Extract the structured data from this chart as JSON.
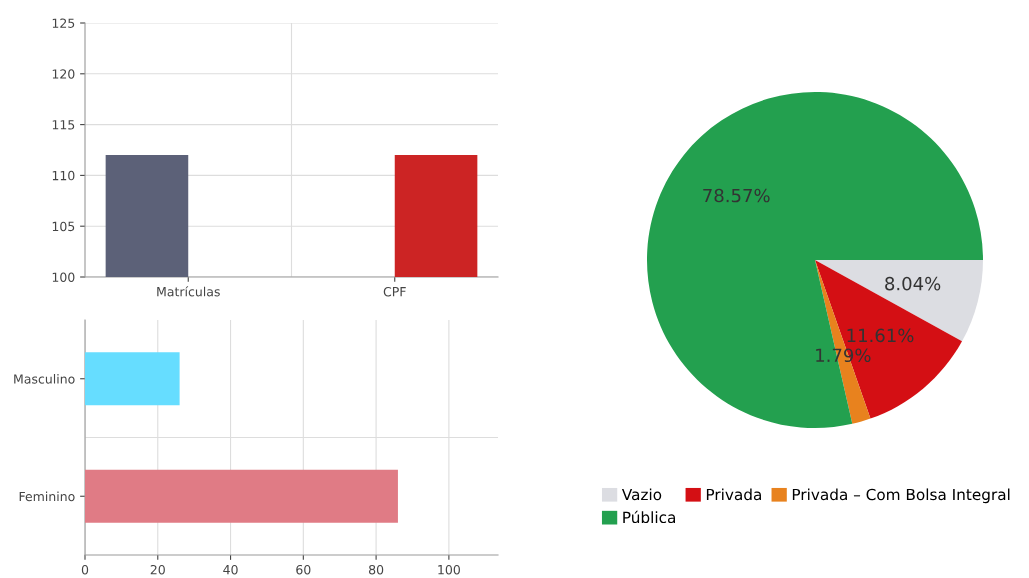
{
  "chart_data": [
    {
      "type": "bar",
      "categories": [
        "Matrículas",
        "CPF"
      ],
      "series": [
        {
          "color": "#5c6178",
          "values": [
            112,
            null
          ]
        },
        {
          "color": "#cc2424",
          "values": [
            null,
            112
          ]
        }
      ],
      "ylim": [
        100,
        125
      ],
      "yticks": [
        100,
        105,
        110,
        115,
        120,
        125
      ],
      "grid": true
    },
    {
      "type": "bar",
      "orientation": "horizontal",
      "categories": [
        "Masculino",
        "Feminino"
      ],
      "values": [
        26,
        86
      ],
      "colors": [
        "#66ddff",
        "#e07b85"
      ],
      "xlim": [
        0,
        113.5
      ],
      "xticks": [
        0,
        20,
        40,
        60,
        80,
        100
      ],
      "grid": true
    },
    {
      "type": "pie",
      "categories": [
        "Vazio",
        "Privada",
        "Privada – Com Bolsa Integral",
        "Pública"
      ],
      "values": [
        8.04,
        11.61,
        1.79,
        78.57
      ],
      "colors": [
        "#dcdde2",
        "#d40f14",
        "#e8821e",
        "#23a04f"
      ],
      "value_labels": [
        "8.04%",
        "11.61%",
        "1.79%",
        "78.57%"
      ],
      "legend": "bottom"
    }
  ]
}
